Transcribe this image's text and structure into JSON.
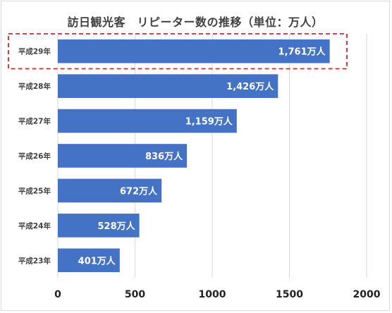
{
  "chart_data": {
    "type": "bar",
    "orientation": "horizontal",
    "title": "訪日観光客　リピーター数の推移（単位：万人）",
    "categories": [
      "平成29年",
      "平成28年",
      "平成27年",
      "平成26年",
      "平成25年",
      "平成24年",
      "平成23年"
    ],
    "values": [
      1761,
      1426,
      1159,
      836,
      672,
      528,
      401
    ],
    "data_labels": [
      "1,761万人",
      "1,426万人",
      "1,159万人",
      "836万人",
      "672万人",
      "528万人",
      "401万人"
    ],
    "xlim": [
      0,
      2000
    ],
    "xticks": [
      0,
      500,
      1000,
      1500,
      2000
    ],
    "grid": "vertical",
    "highlight_category": "平成29年",
    "colors": {
      "bar": "#4472c4",
      "grid": "#d9d9d9",
      "highlight": "#e0202e"
    }
  }
}
